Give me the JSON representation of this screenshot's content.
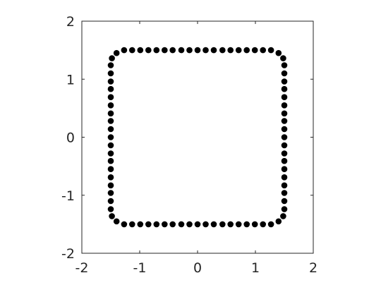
{
  "chart_data": {
    "type": "scatter",
    "title": "",
    "xlabel": "",
    "ylabel": "",
    "xlim": [
      -2,
      2
    ],
    "ylim": [
      -2,
      2
    ],
    "xticks": [
      -2,
      -1,
      0,
      1,
      2
    ],
    "yticks": [
      -2,
      -1,
      0,
      1,
      2
    ],
    "x_tick_labels": [
      "-2",
      "-1",
      "0",
      "1",
      "2"
    ],
    "y_tick_labels": [
      "-2",
      "-1",
      "0",
      "1",
      "2"
    ],
    "grid": false,
    "box": true,
    "aspect": "equal",
    "marker": "filled-circle",
    "marker_color": "#000000",
    "series": [
      {
        "points": [
          [
            -1.5,
            -1.24
          ],
          [
            -1.5,
            -1.1
          ],
          [
            -1.5,
            -0.96
          ],
          [
            -1.5,
            -0.83
          ],
          [
            -1.5,
            -0.69
          ],
          [
            -1.5,
            -0.55
          ],
          [
            -1.5,
            -0.41
          ],
          [
            -1.5,
            -0.28
          ],
          [
            -1.5,
            -0.14
          ],
          [
            -1.5,
            0.0
          ],
          [
            -1.5,
            0.14
          ],
          [
            -1.5,
            0.28
          ],
          [
            -1.5,
            0.41
          ],
          [
            -1.5,
            0.55
          ],
          [
            -1.5,
            0.69
          ],
          [
            -1.5,
            0.83
          ],
          [
            -1.5,
            0.96
          ],
          [
            -1.5,
            1.1
          ],
          [
            -1.5,
            1.24
          ],
          [
            -1.48,
            1.36
          ],
          [
            -1.4,
            1.45
          ],
          [
            -1.27,
            1.5
          ],
          [
            -1.13,
            1.5
          ],
          [
            -0.99,
            1.5
          ],
          [
            -0.85,
            1.5
          ],
          [
            -0.71,
            1.5
          ],
          [
            -0.57,
            1.5
          ],
          [
            -0.43,
            1.5
          ],
          [
            -0.28,
            1.5
          ],
          [
            -0.14,
            1.5
          ],
          [
            0.0,
            1.5
          ],
          [
            0.14,
            1.5
          ],
          [
            0.28,
            1.5
          ],
          [
            0.43,
            1.5
          ],
          [
            0.57,
            1.5
          ],
          [
            0.71,
            1.5
          ],
          [
            0.85,
            1.5
          ],
          [
            0.99,
            1.5
          ],
          [
            1.13,
            1.5
          ],
          [
            1.27,
            1.5
          ],
          [
            1.4,
            1.45
          ],
          [
            1.48,
            1.36
          ],
          [
            1.5,
            1.24
          ],
          [
            1.5,
            1.1
          ],
          [
            1.5,
            0.96
          ],
          [
            1.5,
            0.83
          ],
          [
            1.5,
            0.69
          ],
          [
            1.5,
            0.55
          ],
          [
            1.5,
            0.41
          ],
          [
            1.5,
            0.28
          ],
          [
            1.5,
            0.14
          ],
          [
            1.5,
            0.0
          ],
          [
            1.5,
            -0.14
          ],
          [
            1.5,
            -0.28
          ],
          [
            1.5,
            -0.41
          ],
          [
            1.5,
            -0.55
          ],
          [
            1.5,
            -0.69
          ],
          [
            1.5,
            -0.83
          ],
          [
            1.5,
            -0.96
          ],
          [
            1.5,
            -1.1
          ],
          [
            1.5,
            -1.24
          ],
          [
            1.48,
            -1.36
          ],
          [
            1.4,
            -1.45
          ],
          [
            1.27,
            -1.5
          ],
          [
            1.13,
            -1.5
          ],
          [
            0.99,
            -1.5
          ],
          [
            0.85,
            -1.5
          ],
          [
            0.71,
            -1.5
          ],
          [
            0.57,
            -1.5
          ],
          [
            0.43,
            -1.5
          ],
          [
            0.28,
            -1.5
          ],
          [
            0.14,
            -1.5
          ],
          [
            0.0,
            -1.5
          ],
          [
            -0.14,
            -1.5
          ],
          [
            -0.28,
            -1.5
          ],
          [
            -0.43,
            -1.5
          ],
          [
            -0.57,
            -1.5
          ],
          [
            -0.71,
            -1.5
          ],
          [
            -0.85,
            -1.5
          ],
          [
            -0.99,
            -1.5
          ],
          [
            -1.13,
            -1.5
          ],
          [
            -1.27,
            -1.5
          ],
          [
            -1.4,
            -1.45
          ],
          [
            -1.48,
            -1.36
          ]
        ]
      }
    ]
  }
}
